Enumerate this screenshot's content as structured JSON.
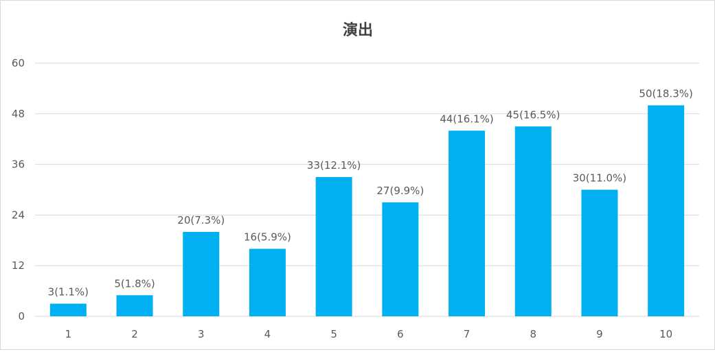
{
  "chart_data": {
    "type": "bar",
    "title": "演出",
    "xlabel": "",
    "ylabel": "",
    "categories": [
      "1",
      "2",
      "3",
      "4",
      "5",
      "6",
      "7",
      "8",
      "9",
      "10"
    ],
    "values": [
      3,
      5,
      20,
      16,
      33,
      27,
      44,
      45,
      30,
      50
    ],
    "data_labels": [
      "3(1.1%)",
      "5(1.8%)",
      "20(7.3%)",
      "16(5.9%)",
      "33(12.1%)",
      "27(9.9%)",
      "44(16.1%)",
      "45(16.5%)",
      "30(11.0%)",
      "50(18.3%)"
    ],
    "ylim": [
      0,
      60
    ],
    "yticks": [
      0,
      12,
      24,
      36,
      48,
      60
    ],
    "grid": true,
    "legend": "none",
    "colors": {
      "bar": "#00b0f0",
      "grid": "#d9d9d9",
      "text": "#595959",
      "title": "#404040"
    }
  }
}
